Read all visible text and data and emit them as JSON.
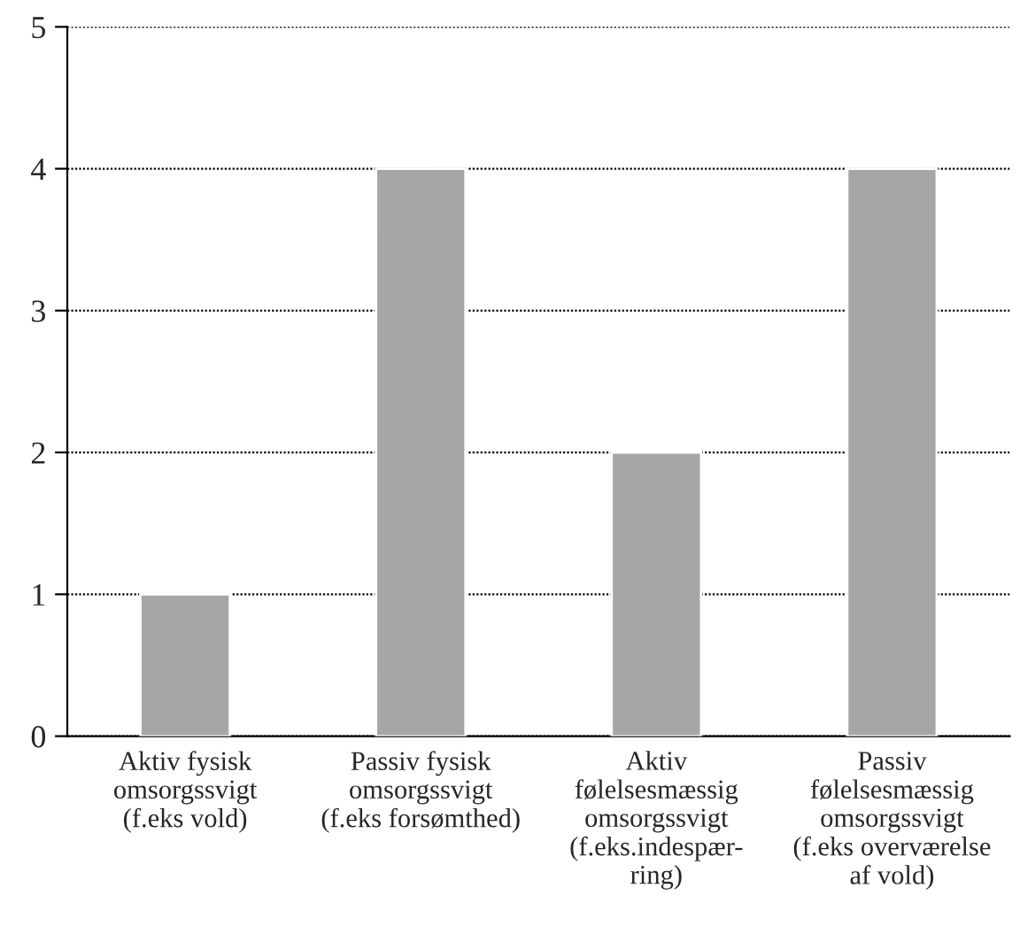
{
  "chart_data": {
    "type": "bar",
    "categories": [
      "Aktiv fysisk\nomsorgssvigt\n(f.eks vold)",
      "Passiv fysisk\nomsorgssvigt\n(f.eks forsømthed)",
      "Aktiv\nfølelsesmæssig\nomsorgssvigt\n(f.eks.indespær-\nring)",
      "Passiv\nfølelsesmæssig\nomsorgssvigt\n(f.eks overværelse\naf vold)"
    ],
    "values": [
      1,
      4,
      2,
      4
    ],
    "color": "#a6a6a6",
    "ylim": [
      0,
      5
    ],
    "yticks": [
      0,
      1,
      2,
      3,
      4,
      5
    ],
    "grid": "y"
  }
}
